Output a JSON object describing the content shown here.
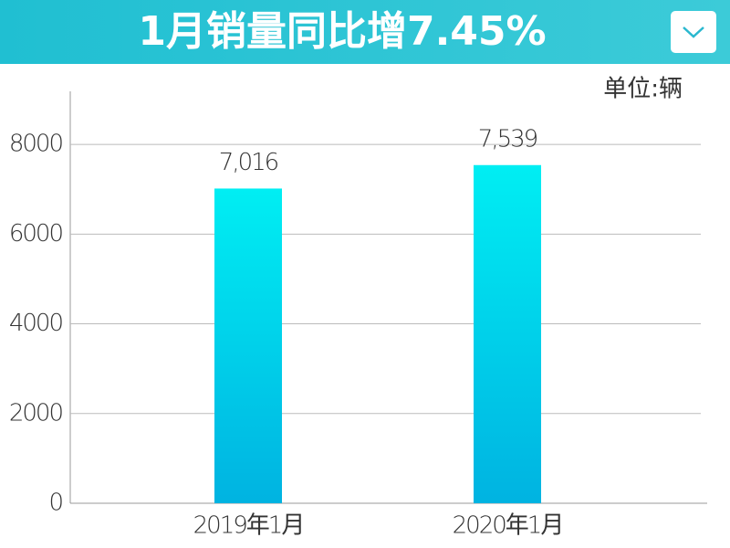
{
  "chart_data": {
    "type": "bar",
    "title": "1月销量同比增7.45%",
    "unit": "单位:辆",
    "categories": [
      "2019年1月",
      "2020年1月"
    ],
    "values": [
      7016,
      7539
    ],
    "value_labels": [
      "7,016",
      "7,539"
    ],
    "gradient": [
      "#00eef3",
      "#00b3e1"
    ],
    "ylim": [
      0,
      9000
    ],
    "yticks": [
      0,
      2000,
      4000,
      6000,
      8000
    ],
    "grid": true
  }
}
